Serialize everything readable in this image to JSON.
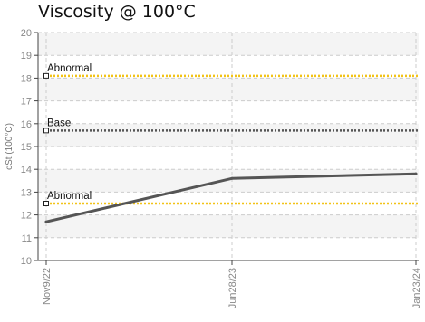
{
  "title": "Viscosity @ 100°C",
  "chart_data": {
    "type": "line",
    "title": "Viscosity @ 100°C",
    "ylabel": "cSt (100°C)",
    "xlabel": "",
    "ylim": [
      10,
      20
    ],
    "yticks": [
      10,
      11,
      12,
      13,
      14,
      15,
      16,
      17,
      18,
      19,
      20
    ],
    "categories": [
      "Nov9/22",
      "Jun28/23",
      "Jan23/24"
    ],
    "grid": true,
    "series": [
      {
        "values": [
          11.7,
          13.6,
          13.8
        ],
        "color": "#555555"
      }
    ],
    "reference_lines": [
      {
        "label": "Abnormal",
        "value": 18.1,
        "color": "#f2c318"
      },
      {
        "label": "Base",
        "value": 15.7,
        "color": "#555555"
      },
      {
        "label": "Abnormal",
        "value": 12.5,
        "color": "#f2c318"
      }
    ],
    "band_color": "#f4f4f4",
    "grid_color": "#cccccc"
  }
}
